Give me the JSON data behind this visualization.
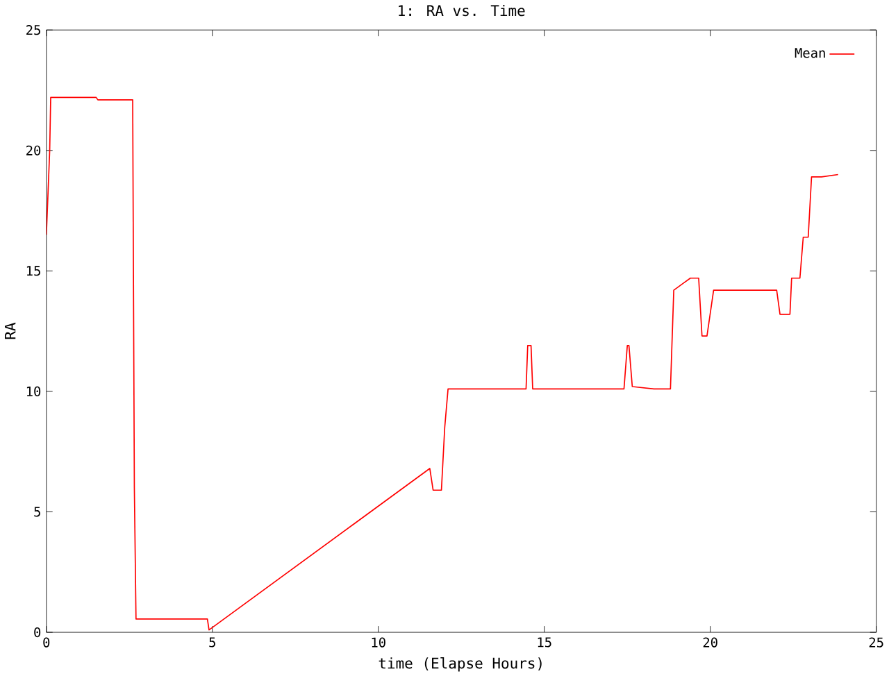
{
  "chart_data": {
    "type": "line",
    "title": "1: RA vs. Time",
    "xlabel": "time (Elapse Hours)",
    "ylabel": "RA",
    "xlim": [
      0,
      25
    ],
    "xticks": [
      0,
      5,
      10,
      15,
      20,
      25
    ],
    "ylim": [
      0,
      25
    ],
    "yticks": [
      0,
      5,
      10,
      15,
      20,
      25
    ],
    "legend": "top right",
    "marker": "none",
    "line_style": "solid",
    "series": [
      {
        "name": "Mean",
        "color": "#ff0000",
        "x": [
          0,
          0.04,
          0.1,
          0.13,
          1.5,
          1.55,
          2.6,
          2.65,
          2.7,
          4.85,
          4.9,
          11.55,
          11.65,
          11.9,
          12.0,
          12.1,
          14.45,
          14.5,
          14.6,
          14.65,
          17.4,
          17.5,
          17.55,
          17.65,
          18.3,
          18.8,
          18.9,
          19.2,
          19.4,
          19.65,
          19.75,
          19.9,
          20.1,
          22.0,
          22.1,
          22.4,
          22.45,
          22.7,
          22.8,
          22.95,
          23.05,
          23.35,
          23.85
        ],
        "values": [
          16.5,
          17.9,
          20.0,
          22.2,
          22.2,
          22.1,
          22.1,
          6.0,
          0.55,
          0.55,
          0.1,
          6.8,
          5.9,
          5.9,
          8.5,
          10.1,
          10.1,
          11.9,
          11.9,
          10.1,
          10.1,
          11.9,
          11.9,
          10.2,
          10.1,
          10.1,
          14.2,
          14.5,
          14.7,
          14.7,
          12.3,
          12.3,
          14.2,
          14.2,
          13.2,
          13.2,
          14.7,
          14.7,
          16.4,
          16.4,
          18.9,
          18.9,
          19.0
        ]
      }
    ]
  }
}
